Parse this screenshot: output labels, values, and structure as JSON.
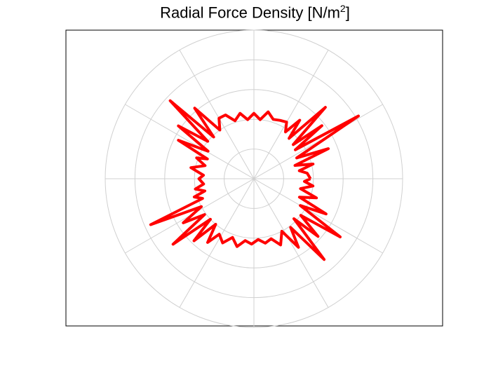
{
  "chart_data": {
    "type": "polar-line",
    "title": "Radial Force Density [N/m",
    "title_superscript": "2",
    "title_suffix": "]",
    "theta_unit": "degrees",
    "theta_grid_step": 30,
    "r_rings": 5,
    "grid": true,
    "series": [
      {
        "color": "#ff0000",
        "points": [
          [
            0,
            0.38
          ],
          [
            6,
            0.36
          ],
          [
            10,
            0.31
          ],
          [
            14,
            0.41
          ],
          [
            18,
            0.29
          ],
          [
            22,
            0.54
          ],
          [
            26,
            0.32
          ],
          [
            31,
            0.82
          ],
          [
            35,
            0.34
          ],
          [
            38,
            0.58
          ],
          [
            41,
            0.35
          ],
          [
            45,
            0.68
          ],
          [
            49,
            0.36
          ],
          [
            52,
            0.5
          ],
          [
            56,
            0.38
          ],
          [
            60,
            0.44
          ],
          [
            66,
            0.43
          ],
          [
            72,
            0.42
          ],
          [
            78,
            0.46
          ],
          [
            84,
            0.4
          ],
          [
            90,
            0.44
          ],
          [
            96,
            0.4
          ],
          [
            102,
            0.45
          ],
          [
            108,
            0.41
          ],
          [
            114,
            0.47
          ],
          [
            120,
            0.47
          ],
          [
            125,
            0.4
          ],
          [
            130,
            0.62
          ],
          [
            134,
            0.39
          ],
          [
            137,
            0.77
          ],
          [
            141,
            0.4
          ],
          [
            145,
            0.62
          ],
          [
            149,
            0.36
          ],
          [
            153,
            0.57
          ],
          [
            157,
            0.34
          ],
          [
            160,
            0.41
          ],
          [
            165,
            0.34
          ],
          [
            170,
            0.43
          ],
          [
            176,
            0.34
          ],
          [
            180,
            0.37
          ],
          [
            186,
            0.34
          ],
          [
            190,
            0.4
          ],
          [
            194,
            0.34
          ],
          [
            197,
            0.42
          ],
          [
            201,
            0.37
          ],
          [
            204,
            0.76
          ],
          [
            208,
            0.4
          ],
          [
            212,
            0.56
          ],
          [
            216,
            0.41
          ],
          [
            219,
            0.7
          ],
          [
            223,
            0.4
          ],
          [
            226,
            0.58
          ],
          [
            230,
            0.4
          ],
          [
            234,
            0.53
          ],
          [
            238,
            0.44
          ],
          [
            244,
            0.48
          ],
          [
            250,
            0.42
          ],
          [
            256,
            0.47
          ],
          [
            262,
            0.42
          ],
          [
            268,
            0.44
          ],
          [
            274,
            0.41
          ],
          [
            280,
            0.44
          ],
          [
            286,
            0.42
          ],
          [
            292,
            0.48
          ],
          [
            298,
            0.4
          ],
          [
            303,
            0.55
          ],
          [
            307,
            0.41
          ],
          [
            311,
            0.72
          ],
          [
            315,
            0.38
          ],
          [
            318,
            0.58
          ],
          [
            322,
            0.4
          ],
          [
            326,
            0.7
          ],
          [
            330,
            0.36
          ],
          [
            334,
            0.54
          ],
          [
            338,
            0.33
          ],
          [
            343,
            0.44
          ],
          [
            348,
            0.32
          ],
          [
            353,
            0.4
          ],
          [
            357,
            0.34
          ],
          [
            360,
            0.38
          ]
        ]
      }
    ]
  }
}
